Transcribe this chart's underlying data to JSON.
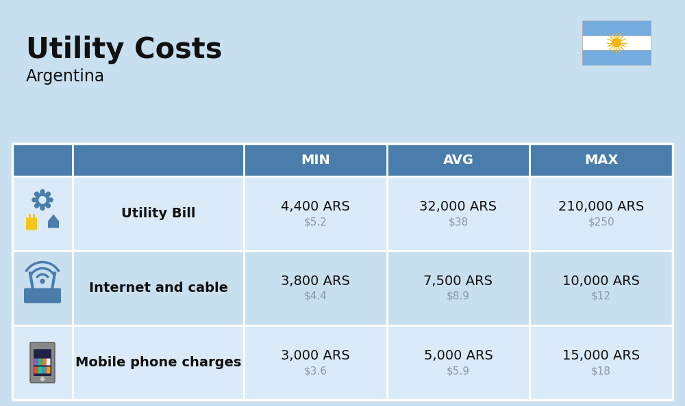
{
  "title": "Utility Costs",
  "subtitle": "Argentina",
  "background_color": "#c8dff0",
  "header_bg_color": "#4a7dac",
  "header_text_color": "#ffffff",
  "row_bg_color_odd": "#daeaf8",
  "row_bg_color_even": "#c8dff0",
  "table_border_color": "#ffffff",
  "col_headers": [
    "MIN",
    "AVG",
    "MAX"
  ],
  "rows": [
    {
      "label": "Utility Bill",
      "min_ars": "4,400 ARS",
      "min_usd": "$5.2",
      "avg_ars": "32,000 ARS",
      "avg_usd": "$38",
      "max_ars": "210,000 ARS",
      "max_usd": "$250"
    },
    {
      "label": "Internet and cable",
      "min_ars": "3,800 ARS",
      "min_usd": "$4.4",
      "avg_ars": "7,500 ARS",
      "avg_usd": "$8.9",
      "max_ars": "10,000 ARS",
      "max_usd": "$12"
    },
    {
      "label": "Mobile phone charges",
      "min_ars": "3,000 ARS",
      "min_usd": "$3.6",
      "avg_ars": "5,000 ARS",
      "avg_usd": "$5.9",
      "max_ars": "15,000 ARS",
      "max_usd": "$18"
    }
  ],
  "title_fontsize": 30,
  "subtitle_fontsize": 17,
  "header_fontsize": 14,
  "cell_ars_fontsize": 14,
  "cell_usd_fontsize": 11,
  "label_fontsize": 14,
  "usd_color": "#8899aa",
  "label_color": "#111111",
  "ars_color": "#111111",
  "flag_stripe_color": "#74acdf",
  "flag_white": "#ffffff",
  "sun_color": "#f6b40e"
}
